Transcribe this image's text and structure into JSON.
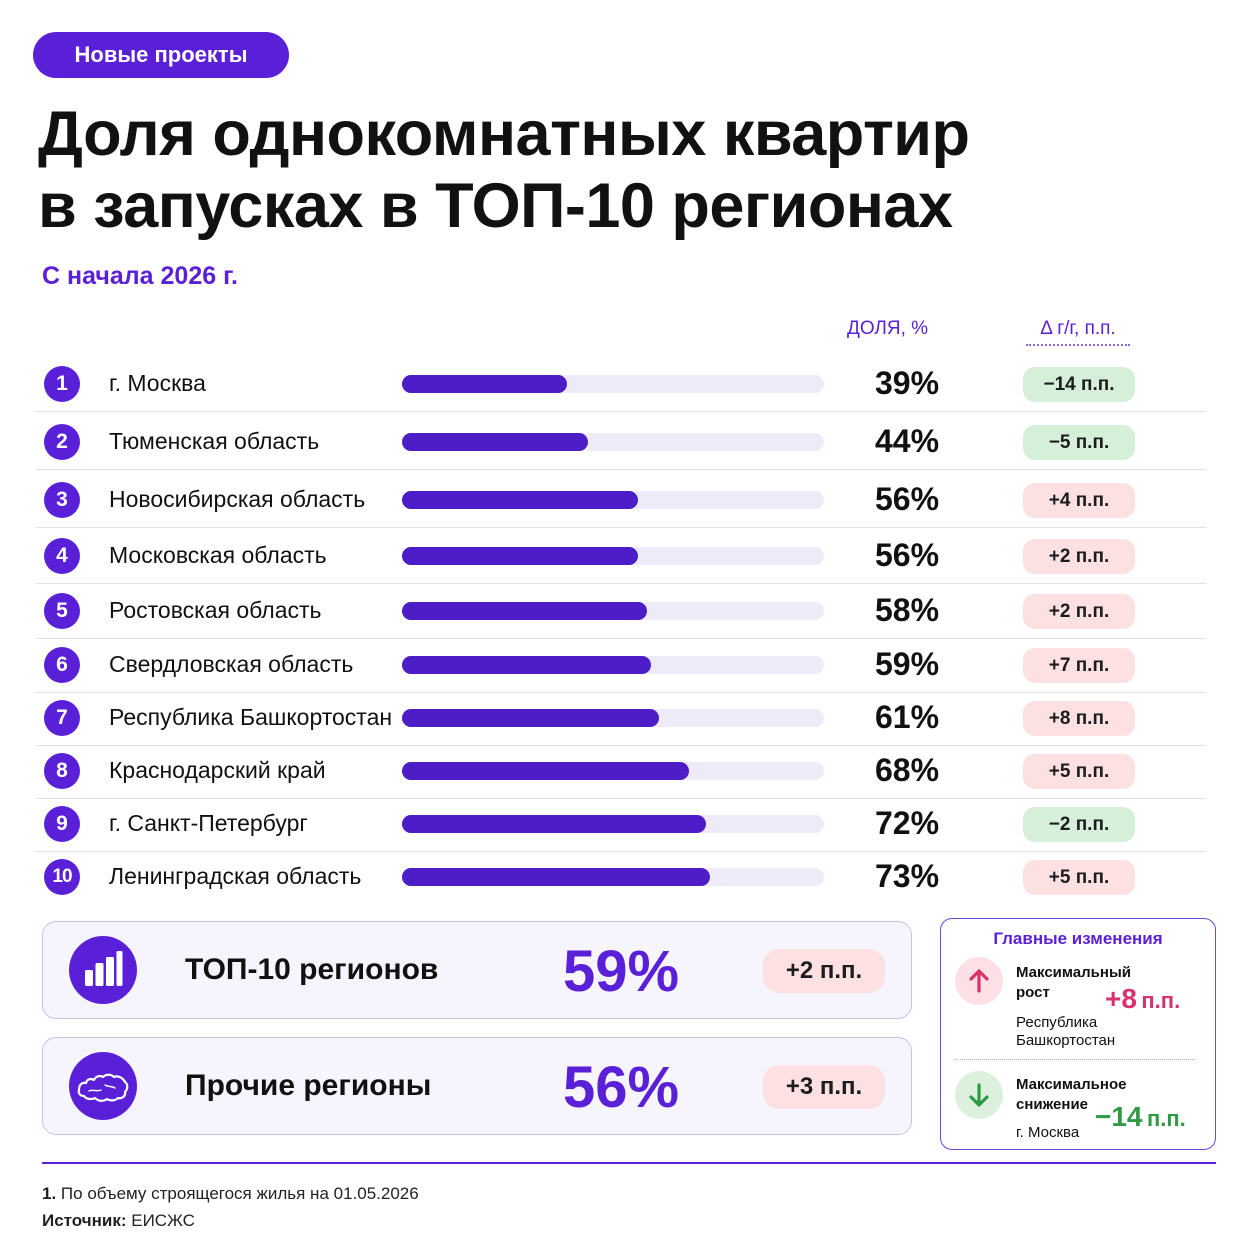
{
  "tag": "Новые проекты",
  "title_line1": "Доля однокомнатных квартир",
  "title_line2": "в запусках в ТОП-10 регионах",
  "subtitle": "С начала 2026 г.",
  "colors": {
    "accent": "#5a20d8",
    "negative_bg": "#d6efd8",
    "positive_bg": "#fde0e1",
    "track": "#eeebf8"
  },
  "chart_data": {
    "type": "bar",
    "orientation": "horizontal",
    "share_header": "ДОЛЯ, %",
    "delta_header": "Δ г/г, п.п.",
    "xlim": [
      0,
      100
    ],
    "rows": [
      {
        "rank": "1",
        "region": "г. Москва",
        "value": 39,
        "value_label": "39%",
        "delta": -14,
        "delta_label": "−14 п.п."
      },
      {
        "rank": "2",
        "region": "Тюменская область",
        "value": 44,
        "value_label": "44%",
        "delta": -5,
        "delta_label": "−5 п.п."
      },
      {
        "rank": "3",
        "region": "Новосибирская область",
        "value": 56,
        "value_label": "56%",
        "delta": 4,
        "delta_label": "+4 п.п."
      },
      {
        "rank": "4",
        "region": "Московская область",
        "value": 56,
        "value_label": "56%",
        "delta": 2,
        "delta_label": "+2 п.п."
      },
      {
        "rank": "5",
        "region": "Ростовская область",
        "value": 58,
        "value_label": "58%",
        "delta": 2,
        "delta_label": "+2 п.п."
      },
      {
        "rank": "6",
        "region": "Свердловская область",
        "value": 59,
        "value_label": "59%",
        "delta": 7,
        "delta_label": "+7 п.п."
      },
      {
        "rank": "7",
        "region": "Республика Башкортостан",
        "value": 61,
        "value_label": "61%",
        "delta": 8,
        "delta_label": "+8 п.п."
      },
      {
        "rank": "8",
        "region": "Краснодарский край",
        "value": 68,
        "value_label": "68%",
        "delta": 5,
        "delta_label": "+5 п.п."
      },
      {
        "rank": "9",
        "region": "г. Санкт-Петербург",
        "value": 72,
        "value_label": "72%",
        "delta": -2,
        "delta_label": "−2 п.п."
      },
      {
        "rank": "10",
        "region": "Ленинградская область",
        "value": 73,
        "value_label": "73%",
        "delta": 5,
        "delta_label": "+5 п.п."
      }
    ]
  },
  "summary": [
    {
      "label": "ТОП-10 регионов",
      "value": "59%",
      "change": "+2 п.п.",
      "icon": "bar-chart-icon"
    },
    {
      "label": "Прочие регионы",
      "value": "56%",
      "change": "+3 п.п.",
      "icon": "russia-map-icon"
    }
  ],
  "changes": {
    "heading": "Главные изменения",
    "max_growth": {
      "title_line1": "Максимальный",
      "title_line2": "рост",
      "value": "+8",
      "unit": "п.п.",
      "region_line1": "Республика",
      "region_line2": "Башкортостан",
      "icon": "arrow-up-icon"
    },
    "max_decline": {
      "title_line1": "Максимальное",
      "title_line2": "снижение",
      "value": "−14",
      "unit": "п.п.",
      "region": "г. Москва",
      "icon": "arrow-down-icon"
    }
  },
  "footnote_num": "1.",
  "footnote_text": "По объему строящегося жилья на 01.05.2026",
  "source_label": "Источник:",
  "source_text": "ЕИСЖС"
}
